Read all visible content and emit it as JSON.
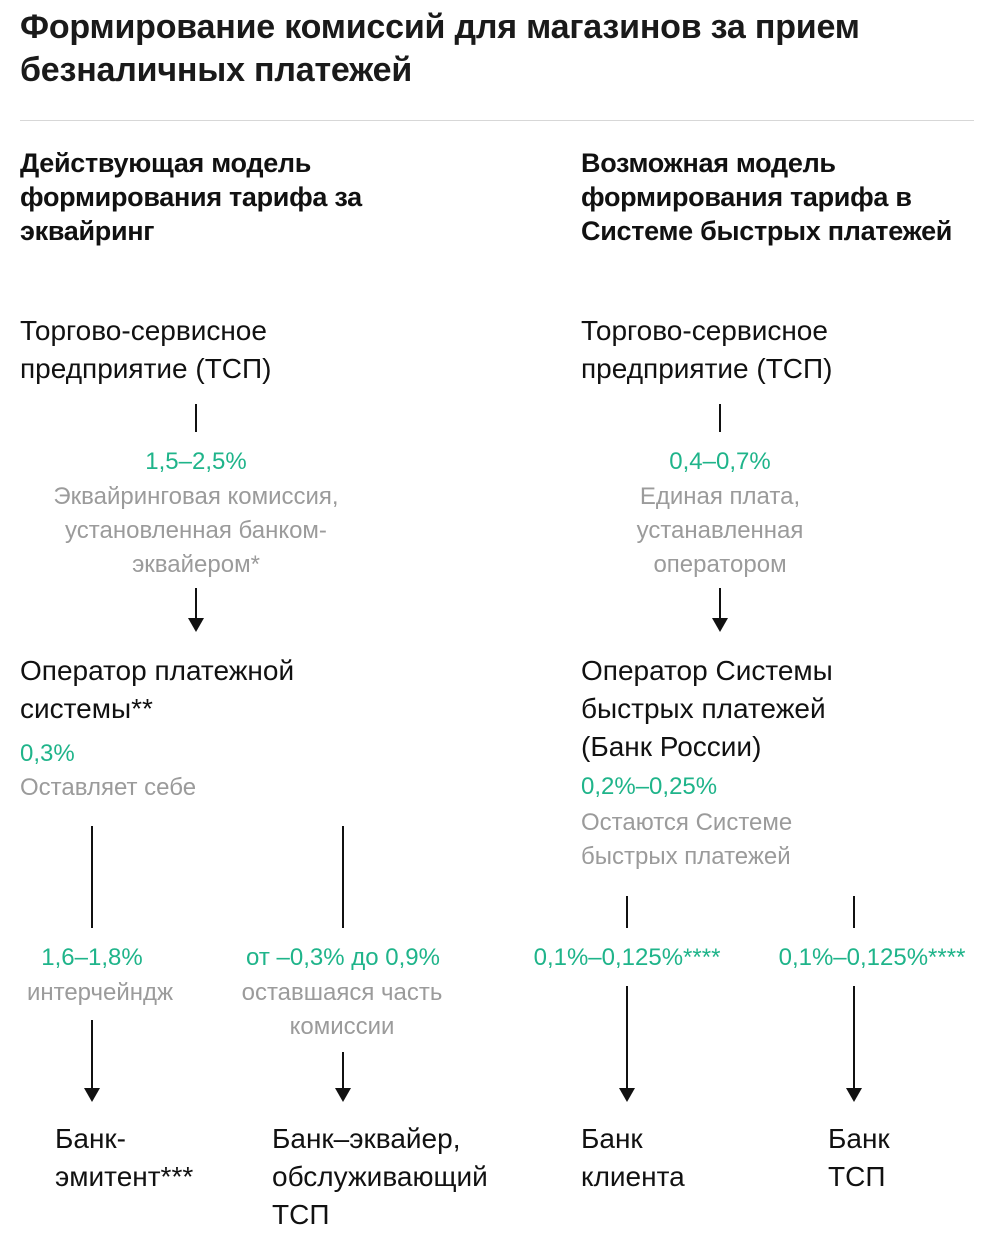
{
  "title": "Формирование комиссий для магазинов за прием безналичных платежей",
  "left": {
    "heading": "Действующая модель формирования тарифа за эквайринг",
    "start": "Торгово-сервисное предприятие (ТСП)",
    "fee": "1,5–2,5%",
    "fee_note": "Эквайринговая комиссия, установленная банком-эквайером*",
    "operator": "Оператор платежной системы**",
    "operator_fee": "0,3%",
    "operator_note": "Оставляет себе",
    "branch1_fee": "1,6–1,8%",
    "branch1_note": "интерчейндж",
    "branch1_target": "Банк-эмитент***",
    "branch2_fee": "от –0,3% до 0,9%",
    "branch2_note": "оставшаяся часть комиссии",
    "branch2_target": "Банк–эквайер, обслуживающий ТСП"
  },
  "right": {
    "heading": "Возможная модель формирования тарифа в Системе быстрых платежей",
    "start": "Торгово-сервисное предприятие (ТСП)",
    "fee": "0,4–0,7%",
    "fee_note": "Единая плата, устанавленная оператором",
    "operator": "Оператор Системы быстрых платежей (Банк России)",
    "operator_fee": "0,2%–0,25%",
    "operator_note": "Остаются Системе быстрых платежей",
    "branch1_fee": "0,1%–0,125%****",
    "branch1_target": "Банк клиента",
    "branch2_fee": "0,1%–0,125%****",
    "branch2_target": "Банк ТСП"
  },
  "colors": {
    "accent_green": "#1fb48a",
    "note_gray": "#9b9b9b",
    "text": "#111111"
  }
}
